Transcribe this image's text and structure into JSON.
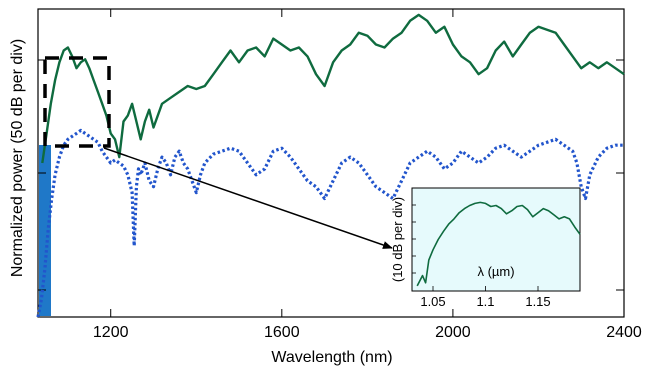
{
  "chart_data": [
    {
      "type": "line",
      "xlabel": "Wavelength (nm)",
      "ylabel": "Normalized power (50 dB per div)",
      "xlim": [
        1030,
        2400
      ],
      "xticks": [
        "1200",
        "1600",
        "2000",
        "2400"
      ],
      "xtick_values": [
        1200,
        1600,
        2000,
        2400
      ],
      "ylim": [
        0,
        5.2
      ],
      "grid": false,
      "series": [
        {
          "style": "solid",
          "color": "#0f6b3f",
          "x": [
            1040,
            1050,
            1060,
            1070,
            1080,
            1090,
            1100,
            1110,
            1120,
            1130,
            1140,
            1150,
            1160,
            1170,
            1180,
            1190,
            1200,
            1210,
            1220,
            1230,
            1240,
            1250,
            1260,
            1270,
            1280,
            1290,
            1300,
            1320,
            1340,
            1360,
            1380,
            1400,
            1420,
            1440,
            1460,
            1480,
            1500,
            1520,
            1540,
            1560,
            1580,
            1600,
            1620,
            1640,
            1660,
            1680,
            1700,
            1720,
            1740,
            1760,
            1780,
            1800,
            1820,
            1840,
            1860,
            1880,
            1900,
            1920,
            1940,
            1960,
            1980,
            2000,
            2020,
            2040,
            2060,
            2080,
            2100,
            2120,
            2140,
            2160,
            2180,
            2200,
            2220,
            2240,
            2260,
            2280,
            2300,
            2320,
            2340,
            2360,
            2380,
            2400
          ],
          "y": [
            2.6,
            3.1,
            3.6,
            4.0,
            4.3,
            4.5,
            4.55,
            4.4,
            4.2,
            4.3,
            4.35,
            4.2,
            4.0,
            3.8,
            3.6,
            3.4,
            3.1,
            3.0,
            2.7,
            3.3,
            3.4,
            3.6,
            3.3,
            3.0,
            3.3,
            3.5,
            3.2,
            3.6,
            3.7,
            3.8,
            3.9,
            3.85,
            3.9,
            4.1,
            4.3,
            4.5,
            4.3,
            4.5,
            4.55,
            4.4,
            4.7,
            4.6,
            4.5,
            4.55,
            4.4,
            4.1,
            3.9,
            4.3,
            4.5,
            4.6,
            4.8,
            4.75,
            4.6,
            4.55,
            4.7,
            4.8,
            5.0,
            5.1,
            5.0,
            4.8,
            4.9,
            4.6,
            4.4,
            4.3,
            4.1,
            4.2,
            4.5,
            4.65,
            4.4,
            4.6,
            4.8,
            4.9,
            4.85,
            4.8,
            4.6,
            4.4,
            4.2,
            4.3,
            4.2,
            4.3,
            4.2,
            4.1
          ]
        },
        {
          "style": "dotted",
          "color": "#2255cc",
          "x": [
            1030,
            1038,
            1046,
            1054,
            1062,
            1070,
            1080,
            1090,
            1100,
            1110,
            1120,
            1130,
            1140,
            1150,
            1160,
            1170,
            1180,
            1190,
            1200,
            1210,
            1220,
            1230,
            1240,
            1250,
            1255,
            1260,
            1265,
            1270,
            1280,
            1290,
            1300,
            1310,
            1320,
            1330,
            1340,
            1350,
            1360,
            1370,
            1380,
            1390,
            1400,
            1410,
            1420,
            1440,
            1460,
            1480,
            1500,
            1520,
            1540,
            1560,
            1580,
            1600,
            1620,
            1640,
            1660,
            1680,
            1700,
            1720,
            1740,
            1760,
            1780,
            1800,
            1820,
            1840,
            1860,
            1880,
            1900,
            1920,
            1940,
            1960,
            1980,
            2000,
            2020,
            2040,
            2060,
            2080,
            2100,
            2120,
            2140,
            2160,
            2180,
            2200,
            2220,
            2240,
            2260,
            2280,
            2290,
            2300,
            2310,
            2320,
            2340,
            2360,
            2380,
            2400
          ],
          "y": [
            0.0,
            0.3,
            0.8,
            1.5,
            2.0,
            2.4,
            2.7,
            2.9,
            3.0,
            3.05,
            3.1,
            3.15,
            3.1,
            3.05,
            3.0,
            2.95,
            2.8,
            2.7,
            2.6,
            2.65,
            2.6,
            2.55,
            2.4,
            2.1,
            1.2,
            2.2,
            2.5,
            2.4,
            2.6,
            2.3,
            2.2,
            2.5,
            2.7,
            2.6,
            2.4,
            2.7,
            2.8,
            2.6,
            2.5,
            2.3,
            2.1,
            2.4,
            2.6,
            2.75,
            2.8,
            2.85,
            2.8,
            2.6,
            2.4,
            2.5,
            2.8,
            2.85,
            2.7,
            2.5,
            2.3,
            2.2,
            2.0,
            2.3,
            2.6,
            2.7,
            2.6,
            2.4,
            2.2,
            2.1,
            2.0,
            2.3,
            2.6,
            2.7,
            2.8,
            2.7,
            2.5,
            2.6,
            2.8,
            2.7,
            2.6,
            2.7,
            2.85,
            2.9,
            2.8,
            2.7,
            2.8,
            2.9,
            2.95,
            3.0,
            2.9,
            2.8,
            2.6,
            2.2,
            2.0,
            2.4,
            2.7,
            2.85,
            2.9,
            2.9
          ]
        }
      ]
    },
    {
      "type": "line",
      "title": "",
      "ylabel": "(10 dB per div)",
      "xlabel": "λ (µm)",
      "xticks": [
        "1.05",
        "1.1",
        "1.15"
      ],
      "xtick_values": [
        1.05,
        1.1,
        1.15
      ],
      "xlim": [
        1.03,
        1.19
      ],
      "ylim": [
        0,
        10
      ],
      "background": "#e6fafc",
      "series": [
        {
          "style": "solid",
          "color": "#0f6b3f",
          "x": [
            1.035,
            1.04,
            1.043,
            1.046,
            1.05,
            1.055,
            1.06,
            1.065,
            1.07,
            1.075,
            1.08,
            1.085,
            1.09,
            1.095,
            1.1,
            1.105,
            1.11,
            1.115,
            1.12,
            1.125,
            1.13,
            1.135,
            1.14,
            1.145,
            1.15,
            1.155,
            1.16,
            1.165,
            1.17,
            1.175,
            1.18,
            1.185,
            1.19
          ],
          "y": [
            0.5,
            1.5,
            0.8,
            3.0,
            4.0,
            5.0,
            5.8,
            6.5,
            7.0,
            7.6,
            8.0,
            8.3,
            8.5,
            8.6,
            8.5,
            8.2,
            8.3,
            8.0,
            7.5,
            7.8,
            8.2,
            8.3,
            7.9,
            7.2,
            7.6,
            8.0,
            7.8,
            7.4,
            7.0,
            7.2,
            7.0,
            6.2,
            5.5
          ]
        }
      ]
    }
  ]
}
